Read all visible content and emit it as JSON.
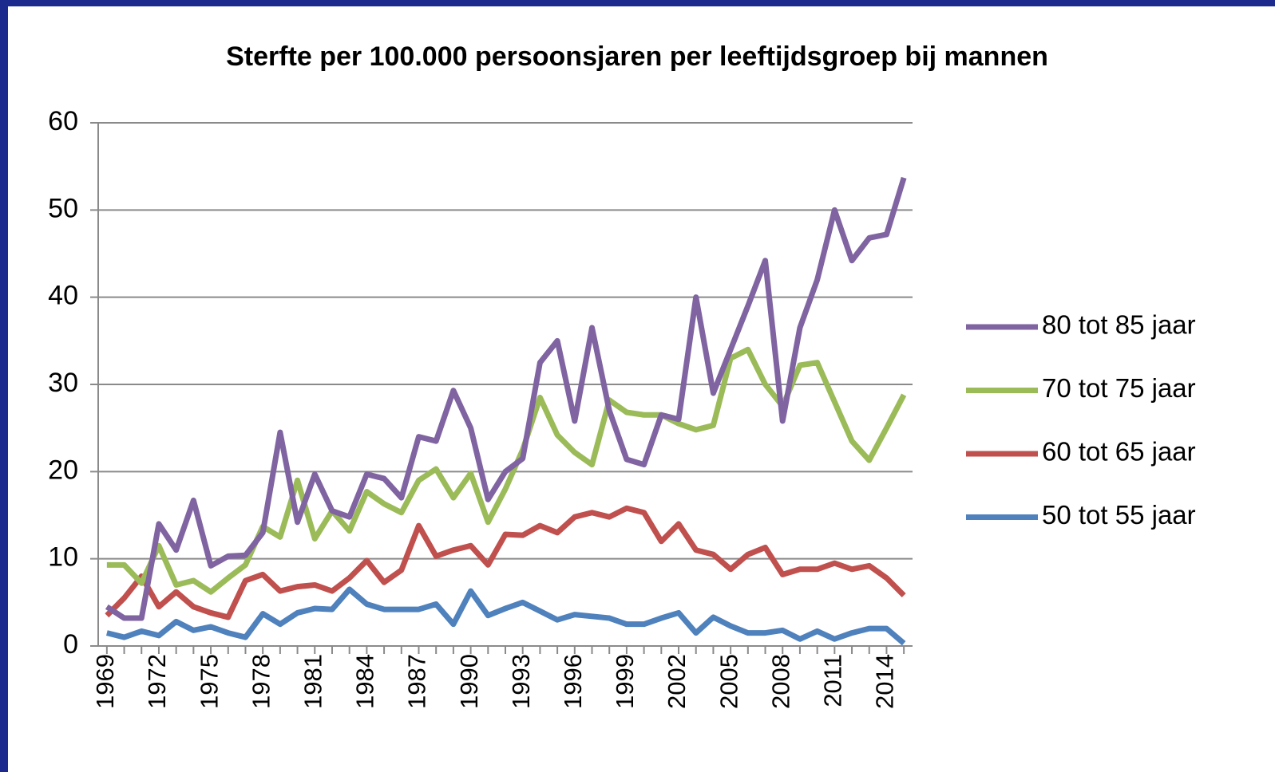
{
  "chart_data": {
    "type": "line",
    "title": "Sterfte per 100.000 persoonsjaren per leeftijdsgroep bij mannen",
    "x": [
      1969,
      1970,
      1971,
      1972,
      1973,
      1974,
      1975,
      1976,
      1977,
      1978,
      1979,
      1980,
      1981,
      1982,
      1983,
      1984,
      1985,
      1986,
      1987,
      1988,
      1989,
      1990,
      1991,
      1992,
      1993,
      1994,
      1995,
      1996,
      1997,
      1998,
      1999,
      2000,
      2001,
      2002,
      2003,
      2004,
      2005,
      2006,
      2007,
      2008,
      2009,
      2010,
      2011,
      2012,
      2013,
      2014,
      2015
    ],
    "xlim": [
      1968.5,
      2015.5
    ],
    "xticks": [
      1969,
      1972,
      1975,
      1978,
      1981,
      1984,
      1987,
      1990,
      1993,
      1996,
      1999,
      2002,
      2005,
      2008,
      2011,
      2014
    ],
    "ylim": [
      0,
      60
    ],
    "yticks": [
      0,
      10,
      20,
      30,
      40,
      50,
      60
    ],
    "grid": true,
    "legend": "right",
    "series": [
      {
        "name": "80 tot 85 jaar",
        "color": "#8064a2",
        "values": [
          4.5,
          3.2,
          3.2,
          14,
          11,
          16.7,
          9.2,
          10.3,
          10.4,
          13,
          24.5,
          14.2,
          19.7,
          15.5,
          14.8,
          19.7,
          19.2,
          17,
          24,
          23.5,
          29.3,
          25,
          16.8,
          20,
          21.5,
          32.5,
          35,
          25.8,
          36.5,
          27,
          21.4,
          20.8,
          26.5,
          26,
          40,
          29,
          34,
          39,
          44.2,
          25.8,
          36.5,
          42,
          50,
          44.2,
          46.8,
          47.2,
          53.7
        ]
      },
      {
        "name": "70 tot 75 jaar",
        "color": "#9bbb59",
        "values": [
          9.3,
          9.3,
          7.2,
          11.5,
          7,
          7.5,
          6.2,
          7.8,
          9.3,
          13.7,
          12.5,
          19,
          12.3,
          15.5,
          13.2,
          17.7,
          16.3,
          15.3,
          19,
          20.3,
          17,
          19.8,
          14.2,
          18,
          22.5,
          28.5,
          24.2,
          22.2,
          20.8,
          28.2,
          26.8,
          26.5,
          26.5,
          25.5,
          24.8,
          25.3,
          33,
          34,
          30,
          27.5,
          32.2,
          32.5,
          28,
          23.5,
          21.3,
          25,
          28.8
        ]
      },
      {
        "name": "60 tot 65 jaar",
        "color": "#c0504d",
        "values": [
          3.5,
          5.5,
          8,
          4.5,
          6.2,
          4.5,
          3.8,
          3.3,
          7.5,
          8.2,
          6.3,
          6.8,
          7,
          6.3,
          7.8,
          9.8,
          7.3,
          8.7,
          13.8,
          10.3,
          11,
          11.5,
          9.3,
          12.8,
          12.7,
          13.8,
          13,
          14.8,
          15.3,
          14.8,
          15.8,
          15.3,
          12,
          14,
          11,
          10.5,
          8.8,
          10.5,
          11.3,
          8.2,
          8.8,
          8.8,
          9.5,
          8.8,
          9.2,
          7.8,
          5.8
        ]
      },
      {
        "name": "50 tot 55 jaar",
        "color": "#4f81bd",
        "values": [
          1.5,
          1,
          1.7,
          1.2,
          2.8,
          1.8,
          2.2,
          1.5,
          1,
          3.7,
          2.5,
          3.8,
          4.3,
          4.2,
          6.5,
          4.8,
          4.2,
          4.2,
          4.2,
          4.8,
          2.5,
          6.3,
          3.5,
          4.3,
          5,
          4,
          3,
          3.6,
          3.4,
          3.2,
          2.5,
          2.5,
          3.2,
          3.8,
          1.5,
          3.3,
          2.3,
          1.5,
          1.5,
          1.8,
          0.8,
          1.7,
          0.8,
          1.5,
          2,
          2,
          0.3
        ]
      }
    ]
  }
}
